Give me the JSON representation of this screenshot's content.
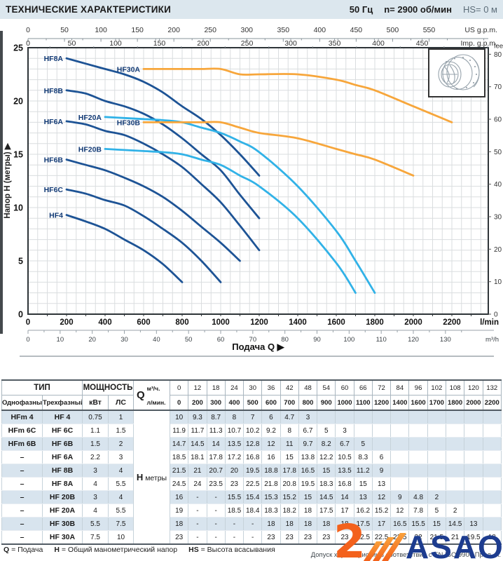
{
  "header": {
    "title": "ТЕХНИЧЕСКИЕ ХАРАКТЕРИСТИКИ",
    "frequency": "50 Гц",
    "speed": "n= 2900 об/мин",
    "suction": "HS= 0 м"
  },
  "chart_data": {
    "type": "line",
    "xlabel": "Подача Q",
    "ylabel": "Напор H (метры)",
    "y2label": "feet",
    "grid": true,
    "xlim_lmin": [
      0,
      2390
    ],
    "ylim_m": [
      0,
      25
    ],
    "axes": {
      "us_gpm": {
        "unit": "US g.p.m.",
        "ticks": [
          0,
          50,
          100,
          150,
          200,
          250,
          300,
          350,
          400,
          450,
          500,
          550
        ]
      },
      "imp_gpm": {
        "unit": "Imp. g.p.m.",
        "ticks": [
          0,
          50,
          100,
          150,
          200,
          250,
          300,
          350,
          400,
          450
        ]
      },
      "l_min": {
        "unit": "l/min",
        "ticks": [
          0,
          200,
          400,
          600,
          800,
          1000,
          1200,
          1400,
          1600,
          1800,
          2000,
          2200
        ]
      },
      "m3_h": {
        "unit": "m³/h",
        "ticks": [
          0,
          10,
          20,
          30,
          40,
          50,
          60,
          70,
          80,
          90,
          100,
          110,
          120,
          130
        ]
      },
      "meters": {
        "unit": "Напор H (метры)",
        "ticks": [
          0,
          5,
          10,
          15,
          20,
          25
        ]
      },
      "feet": {
        "unit": "feet",
        "ticks": [
          0,
          10,
          20,
          30,
          40,
          50,
          60,
          70,
          80
        ]
      }
    },
    "series": [
      {
        "name": "HF4",
        "color": "#1d5395",
        "points": [
          [
            200,
            9.3
          ],
          [
            300,
            8.7
          ],
          [
            400,
            8
          ],
          [
            500,
            7
          ],
          [
            600,
            6
          ],
          [
            700,
            4.7
          ],
          [
            800,
            3
          ]
        ]
      },
      {
        "name": "HF6C",
        "color": "#1d5395",
        "points": [
          [
            200,
            11.7
          ],
          [
            300,
            11.3
          ],
          [
            400,
            10.7
          ],
          [
            500,
            10.2
          ],
          [
            600,
            9.2
          ],
          [
            700,
            8
          ],
          [
            800,
            6.7
          ],
          [
            900,
            5
          ],
          [
            1000,
            3
          ]
        ]
      },
      {
        "name": "HF6B",
        "color": "#1d5395",
        "points": [
          [
            200,
            14.5
          ],
          [
            300,
            14
          ],
          [
            400,
            13.5
          ],
          [
            500,
            12.8
          ],
          [
            600,
            12
          ],
          [
            700,
            11
          ],
          [
            800,
            9.7
          ],
          [
            900,
            8.2
          ],
          [
            1000,
            6.7
          ],
          [
            1100,
            5
          ]
        ]
      },
      {
        "name": "HF6A",
        "color": "#1d5395",
        "points": [
          [
            200,
            18.1
          ],
          [
            300,
            17.8
          ],
          [
            400,
            17.2
          ],
          [
            500,
            16.8
          ],
          [
            600,
            16
          ],
          [
            700,
            15
          ],
          [
            800,
            13.8
          ],
          [
            900,
            12.2
          ],
          [
            1000,
            10.5
          ],
          [
            1100,
            8.3
          ],
          [
            1200,
            6
          ]
        ]
      },
      {
        "name": "HF8B",
        "color": "#1d5395",
        "points": [
          [
            200,
            21
          ],
          [
            300,
            20.7
          ],
          [
            400,
            20
          ],
          [
            500,
            19.5
          ],
          [
            600,
            18.8
          ],
          [
            700,
            17.8
          ],
          [
            800,
            16.5
          ],
          [
            900,
            15
          ],
          [
            1000,
            13.5
          ],
          [
            1100,
            11.2
          ],
          [
            1200,
            9
          ]
        ]
      },
      {
        "name": "HF8A",
        "color": "#1d5395",
        "points": [
          [
            200,
            24
          ],
          [
            300,
            23.5
          ],
          [
            400,
            23
          ],
          [
            500,
            22.5
          ],
          [
            600,
            21.8
          ],
          [
            700,
            20.8
          ],
          [
            800,
            19.5
          ],
          [
            900,
            18.3
          ],
          [
            1000,
            16.8
          ],
          [
            1100,
            15
          ],
          [
            1200,
            13
          ]
        ]
      },
      {
        "name": "HF20B",
        "color": "#31b2e7",
        "points": [
          [
            400,
            15.5
          ],
          [
            500,
            15.4
          ],
          [
            600,
            15.3
          ],
          [
            700,
            15.2
          ],
          [
            800,
            15
          ],
          [
            900,
            14.5
          ],
          [
            1000,
            14
          ],
          [
            1100,
            13
          ],
          [
            1200,
            12
          ],
          [
            1400,
            9
          ],
          [
            1600,
            4.8
          ],
          [
            1700,
            2
          ]
        ]
      },
      {
        "name": "HF20A",
        "color": "#31b2e7",
        "points": [
          [
            400,
            18.5
          ],
          [
            500,
            18.4
          ],
          [
            600,
            18.3
          ],
          [
            700,
            18.2
          ],
          [
            800,
            18
          ],
          [
            900,
            17.5
          ],
          [
            1000,
            17
          ],
          [
            1100,
            16.2
          ],
          [
            1200,
            15.2
          ],
          [
            1400,
            12
          ],
          [
            1600,
            7.8
          ],
          [
            1700,
            5
          ],
          [
            1800,
            2
          ]
        ]
      },
      {
        "name": "HF30B",
        "color": "#f7a63b",
        "points": [
          [
            600,
            18
          ],
          [
            700,
            18
          ],
          [
            800,
            18
          ],
          [
            900,
            18
          ],
          [
            1000,
            18
          ],
          [
            1100,
            17.5
          ],
          [
            1200,
            17
          ],
          [
            1400,
            16.5
          ],
          [
            1600,
            15.5
          ],
          [
            1700,
            15
          ],
          [
            1800,
            14.5
          ],
          [
            2000,
            13
          ]
        ]
      },
      {
        "name": "HF30A",
        "color": "#f7a63b",
        "points": [
          [
            600,
            23
          ],
          [
            700,
            23
          ],
          [
            800,
            23
          ],
          [
            900,
            23
          ],
          [
            1000,
            23
          ],
          [
            1100,
            22.5
          ],
          [
            1200,
            22.5
          ],
          [
            1400,
            22.5
          ],
          [
            1600,
            22
          ],
          [
            1700,
            21.5
          ],
          [
            1800,
            21
          ],
          [
            2000,
            19.5
          ],
          [
            2200,
            18
          ]
        ]
      }
    ]
  },
  "table": {
    "headers": {
      "type": "ТИП",
      "power": "МОЩНОСТЬ",
      "single": "Однофазный",
      "three": "Трехфазный",
      "kw": "кВт",
      "hp": "ЛС",
      "q": "Q",
      "m3h": "м³/ч.",
      "lmin": "л/мин.",
      "h": "H",
      "meters": "метры"
    },
    "q_m3h": [
      "0",
      "12",
      "18",
      "24",
      "30",
      "36",
      "42",
      "48",
      "54",
      "60",
      "66",
      "72",
      "84",
      "96",
      "102",
      "108",
      "120",
      "132"
    ],
    "q_lmin": [
      "0",
      "200",
      "300",
      "400",
      "500",
      "600",
      "700",
      "800",
      "900",
      "1000",
      "1100",
      "1200",
      "1400",
      "1600",
      "1700",
      "1800",
      "2000",
      "2200"
    ],
    "rows": [
      {
        "single": "HFm 4",
        "three": "HF 4",
        "kw": "0.75",
        "hp": "1",
        "values": [
          "10",
          "9.3",
          "8.7",
          "8",
          "7",
          "6",
          "4.7",
          "3",
          "",
          "",
          "",
          "",
          "",
          "",
          "",
          "",
          "",
          ""
        ]
      },
      {
        "single": "HFm 6C",
        "three": "HF 6C",
        "kw": "1.1",
        "hp": "1.5",
        "values": [
          "11.9",
          "11.7",
          "11.3",
          "10.7",
          "10.2",
          "9.2",
          "8",
          "6.7",
          "5",
          "3",
          "",
          "",
          "",
          "",
          "",
          "",
          "",
          ""
        ]
      },
      {
        "single": "HFm 6B",
        "three": "HF 6B",
        "kw": "1.5",
        "hp": "2",
        "values": [
          "14.7",
          "14.5",
          "14",
          "13.5",
          "12.8",
          "12",
          "11",
          "9.7",
          "8.2",
          "6.7",
          "5",
          "",
          "",
          "",
          "",
          "",
          "",
          ""
        ]
      },
      {
        "single": "–",
        "three": "HF 6A",
        "kw": "2.2",
        "hp": "3",
        "values": [
          "18.5",
          "18.1",
          "17.8",
          "17.2",
          "16.8",
          "16",
          "15",
          "13.8",
          "12.2",
          "10.5",
          "8.3",
          "6",
          "",
          "",
          "",
          "",
          "",
          ""
        ]
      },
      {
        "single": "–",
        "three": "HF 8B",
        "kw": "3",
        "hp": "4",
        "values": [
          "21.5",
          "21",
          "20.7",
          "20",
          "19.5",
          "18.8",
          "17.8",
          "16.5",
          "15",
          "13.5",
          "11.2",
          "9",
          "",
          "",
          "",
          "",
          "",
          ""
        ]
      },
      {
        "single": "–",
        "three": "HF 8A",
        "kw": "4",
        "hp": "5.5",
        "values": [
          "24.5",
          "24",
          "23.5",
          "23",
          "22.5",
          "21.8",
          "20.8",
          "19.5",
          "18.3",
          "16.8",
          "15",
          "13",
          "",
          "",
          "",
          "",
          "",
          ""
        ]
      },
      {
        "single": "–",
        "three": "HF 20B",
        "kw": "3",
        "hp": "4",
        "values": [
          "16",
          "-",
          "-",
          "15.5",
          "15.4",
          "15.3",
          "15.2",
          "15",
          "14.5",
          "14",
          "13",
          "12",
          "9",
          "4.8",
          "2",
          "",
          "",
          ""
        ]
      },
      {
        "single": "–",
        "three": "HF 20A",
        "kw": "4",
        "hp": "5.5",
        "values": [
          "19",
          "-",
          "-",
          "18.5",
          "18.4",
          "18.3",
          "18.2",
          "18",
          "17.5",
          "17",
          "16.2",
          "15.2",
          "12",
          "7.8",
          "5",
          "2",
          "",
          ""
        ]
      },
      {
        "single": "–",
        "three": "HF 30B",
        "kw": "5.5",
        "hp": "7.5",
        "values": [
          "18",
          "-",
          "-",
          "-",
          "-",
          "18",
          "18",
          "18",
          "18",
          "18",
          "17.5",
          "17",
          "16.5",
          "15.5",
          "15",
          "14.5",
          "13",
          ""
        ]
      },
      {
        "single": "–",
        "three": "HF 30A",
        "kw": "7.5",
        "hp": "10",
        "values": [
          "23",
          "-",
          "-",
          "-",
          "-",
          "23",
          "23",
          "23",
          "23",
          "23",
          "22.5",
          "22.5",
          "22.5",
          "22",
          "21.5",
          "21",
          "19.5",
          "18"
        ]
      }
    ]
  },
  "footer": {
    "legend": [
      {
        "key": "Q",
        "desc": "Подача"
      },
      {
        "key": "H",
        "desc": "Общий манометрический напор"
      },
      {
        "key": "HS",
        "desc": "Высота всасывания"
      }
    ],
    "tolerance": "Допуск характеристик в соответствии с EN ISO 9906 Прил. A."
  },
  "logo": {
    "mark": "2",
    "text": "ASAO",
    "color_primary": "#f3611c",
    "color_text": "#1d3c8f"
  }
}
